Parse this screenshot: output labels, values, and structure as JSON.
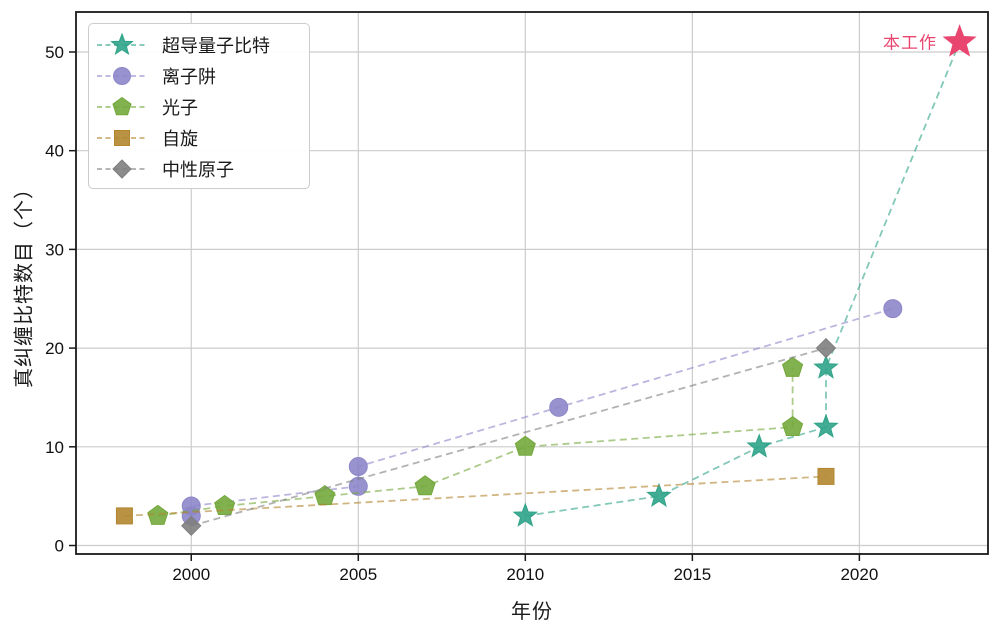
{
  "chart_data": {
    "type": "line-scatter",
    "title": "",
    "xlabel": "年份",
    "ylabel": "真纠缠比特数目（个）",
    "x_ticks": [
      2000,
      2005,
      2010,
      2015,
      2020
    ],
    "y_ticks": [
      0,
      10,
      20,
      30,
      40,
      50
    ],
    "xlim": [
      1996.55,
      2023.85
    ],
    "ylim": [
      -0.86,
      54.05
    ],
    "grid": true,
    "legend_position": "top-left",
    "colors": {
      "grid": "#cccccc",
      "axis": "#1a1a1a",
      "background": "#ffffff"
    },
    "series": [
      {
        "name": "超导量子比特",
        "marker": "star",
        "color": "#2fa389",
        "points": [
          [
            2010,
            3
          ],
          [
            2014,
            5
          ],
          [
            2017,
            10
          ],
          [
            2019,
            12
          ],
          [
            2019,
            18
          ],
          [
            2023,
            51
          ]
        ],
        "last_marker_hidden": true
      },
      {
        "name": "离子阱",
        "marker": "circle",
        "color": "#8d86c9",
        "points": [
          [
            2000,
            3
          ],
          [
            2000,
            4
          ],
          [
            2005,
            6
          ],
          [
            2005,
            8
          ],
          [
            2011,
            14
          ],
          [
            2021,
            24
          ]
        ]
      },
      {
        "name": "光子",
        "marker": "pentagon",
        "color": "#74a83c",
        "points": [
          [
            1999,
            3
          ],
          [
            2001,
            4
          ],
          [
            2004,
            5
          ],
          [
            2007,
            6
          ],
          [
            2010,
            10
          ],
          [
            2018,
            12
          ],
          [
            2018,
            18
          ]
        ]
      },
      {
        "name": "自旋",
        "marker": "square",
        "color": "#b3862f",
        "points": [
          [
            1998,
            3
          ],
          [
            2019,
            7
          ]
        ]
      },
      {
        "name": "中性原子",
        "marker": "diamond",
        "color": "#7f7f7f",
        "points": [
          [
            2000,
            2
          ],
          [
            2019,
            20
          ]
        ]
      }
    ],
    "annotation": {
      "text": "本工作",
      "x": 2023,
      "y": 51,
      "color": "#e8456f",
      "marker": "star"
    }
  }
}
